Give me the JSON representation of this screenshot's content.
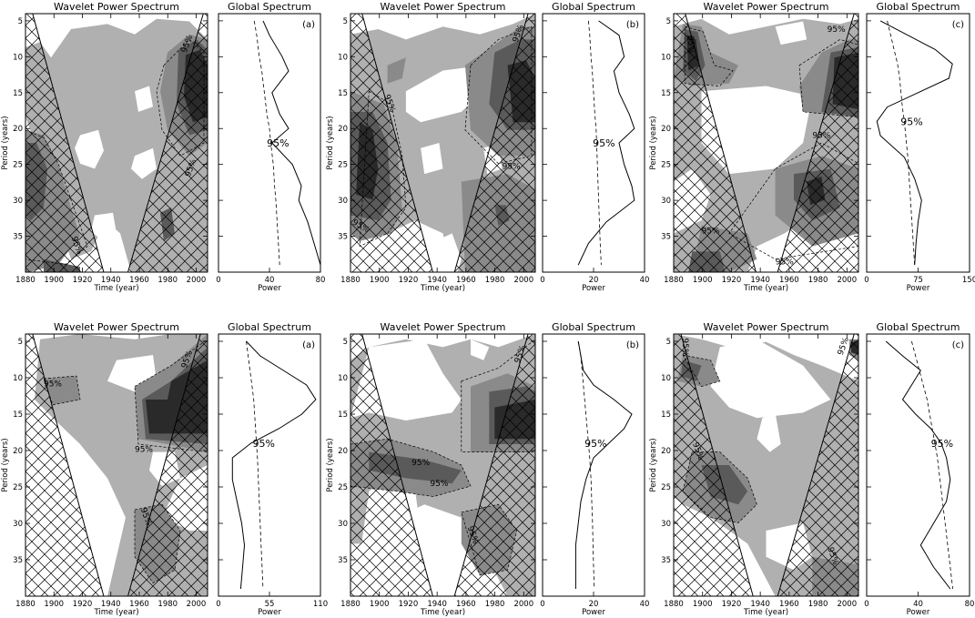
{
  "figure": {
    "wavelet_title": "Wavelet Power Spectrum",
    "global_title": "Global Spectrum",
    "time_label": "Time (year)",
    "period_label": "Period (years)",
    "power_label": "Power",
    "sig_label": "95%"
  },
  "chart_data": [
    {
      "type": "heatmap",
      "panel": "(a)",
      "row": 1,
      "title": "Wavelet Power Spectrum",
      "xlabel": "Time (year)",
      "ylabel": "Period (years)",
      "x_ticks": [
        1880,
        1900,
        1920,
        1940,
        1960,
        1980,
        2000
      ],
      "y_ticks": [
        5,
        10,
        15,
        20,
        25,
        30,
        35
      ],
      "xlim": [
        1880,
        2008
      ],
      "ylim": [
        4,
        40
      ],
      "y_inverted": true,
      "contour_levels": [
        "light",
        "medium",
        "dark",
        "darkest"
      ],
      "significance_label": "95%",
      "cone_of_influence": {
        "left_edge_year": [
          1885,
          1935
        ],
        "right_edge_year": [
          2005,
          1952
        ]
      },
      "global_spectrum": {
        "title": "Global Spectrum",
        "xlabel": "Power",
        "xlim": [
          0,
          80
        ],
        "x_ticks": [
          0,
          40,
          80
        ],
        "period": [
          5,
          7,
          10,
          12,
          15,
          18,
          20,
          22,
          25,
          28,
          30,
          33,
          36,
          39
        ],
        "power": [
          35,
          40,
          50,
          55,
          42,
          48,
          55,
          42,
          58,
          65,
          63,
          70,
          75,
          80
        ],
        "significance_95": [
          28,
          30,
          32,
          34,
          36,
          38,
          40,
          41,
          43,
          44,
          45,
          46,
          47,
          48
        ]
      }
    },
    {
      "type": "heatmap",
      "panel": "(b)",
      "row": 1,
      "title": "Wavelet Power Spectrum",
      "xlabel": "Time (year)",
      "ylabel": "Period (years)",
      "x_ticks": [
        1880,
        1900,
        1920,
        1940,
        1960,
        1980,
        2000
      ],
      "y_ticks": [
        5,
        10,
        15,
        20,
        25,
        30,
        35
      ],
      "xlim": [
        1880,
        2008
      ],
      "ylim": [
        4,
        40
      ],
      "y_inverted": true,
      "contour_levels": [
        "light",
        "medium",
        "dark",
        "darkest"
      ],
      "significance_label": "95%",
      "cone_of_influence": {
        "left_edge_year": [
          1888,
          1937
        ],
        "right_edge_year": [
          2003,
          1952
        ]
      },
      "global_spectrum": {
        "title": "Global Spectrum",
        "xlabel": "Power",
        "xlim": [
          0,
          40
        ],
        "x_ticks": [
          0,
          20,
          40
        ],
        "period": [
          5,
          7,
          10,
          12,
          15,
          18,
          20,
          22,
          25,
          28,
          30,
          33,
          36,
          39
        ],
        "power": [
          22,
          30,
          32,
          28,
          30,
          34,
          36,
          30,
          32,
          35,
          36,
          25,
          18,
          14
        ],
        "significance_95": [
          18,
          18.5,
          19,
          19.5,
          20,
          20.5,
          21,
          21.2,
          21.5,
          21.8,
          22,
          22.3,
          22.6,
          23
        ]
      }
    },
    {
      "type": "heatmap",
      "panel": "(c)",
      "row": 1,
      "title": "Wavelet Power Spectrum",
      "xlabel": "Time (year)",
      "ylabel": "Period (years)",
      "x_ticks": [
        1880,
        1900,
        1920,
        1940,
        1960,
        1980,
        2000
      ],
      "y_ticks": [
        5,
        10,
        15,
        20,
        25,
        30,
        35
      ],
      "xlim": [
        1880,
        2008
      ],
      "ylim": [
        4,
        40
      ],
      "y_inverted": true,
      "contour_levels": [
        "light",
        "medium",
        "dark",
        "darkest"
      ],
      "significance_label": "95%",
      "cone_of_influence": {
        "left_edge_year": [
          1888,
          1937
        ],
        "right_edge_year": [
          2005,
          1952
        ]
      },
      "global_spectrum": {
        "title": "Global Spectrum",
        "xlabel": "Power",
        "xlim": [
          0,
          150
        ],
        "x_ticks": [
          0,
          75,
          150
        ],
        "period": [
          5,
          7,
          9,
          11,
          13,
          15,
          17,
          19,
          21,
          24,
          27,
          30,
          33,
          36,
          39
        ],
        "power": [
          20,
          60,
          100,
          125,
          120,
          75,
          30,
          15,
          20,
          55,
          70,
          80,
          75,
          72,
          70
        ],
        "significance_95": [
          30,
          35,
          40,
          45,
          48,
          50,
          52,
          55,
          57,
          60,
          62,
          64,
          66,
          68,
          70
        ]
      }
    },
    {
      "type": "heatmap",
      "panel": "(a)",
      "row": 2,
      "title": "Wavelet Power Spectrum",
      "xlabel": "Time (year)",
      "ylabel": "Period (years)",
      "x_ticks": [
        1880,
        1900,
        1920,
        1940,
        1960,
        1980,
        2000
      ],
      "y_ticks": [
        5,
        10,
        15,
        20,
        25,
        30,
        35
      ],
      "xlim": [
        1880,
        2008
      ],
      "ylim": [
        4,
        40
      ],
      "y_inverted": true,
      "contour_levels": [
        "light",
        "medium",
        "dark",
        "darkest"
      ],
      "significance_label": "95%",
      "cone_of_influence": {
        "left_edge_year": [
          1885,
          1935
        ],
        "right_edge_year": [
          2003,
          1952
        ]
      },
      "global_spectrum": {
        "title": "Global Spectrum",
        "xlabel": "Power",
        "xlim": [
          0,
          110
        ],
        "x_ticks": [
          0,
          55,
          110
        ],
        "period": [
          5,
          7,
          9,
          11,
          13,
          15,
          17,
          19,
          21,
          24,
          27,
          30,
          33,
          36,
          39
        ],
        "power": [
          30,
          45,
          70,
          95,
          105,
          90,
          65,
          35,
          15,
          15,
          20,
          25,
          28,
          26,
          24
        ],
        "significance_95": [
          30,
          32,
          34,
          36,
          38,
          39,
          40,
          41,
          42,
          43,
          44,
          45,
          46,
          47,
          48
        ]
      }
    },
    {
      "type": "heatmap",
      "panel": "(b)",
      "row": 2,
      "title": "Wavelet Power Spectrum",
      "xlabel": "Time (year)",
      "ylabel": "Period (years)",
      "x_ticks": [
        1880,
        1900,
        1920,
        1940,
        1960,
        1980,
        2000
      ],
      "y_ticks": [
        5,
        10,
        15,
        20,
        25,
        30,
        35
      ],
      "xlim": [
        1880,
        2008
      ],
      "ylim": [
        4,
        40
      ],
      "y_inverted": true,
      "contour_levels": [
        "light",
        "medium",
        "dark",
        "darkest"
      ],
      "significance_label": "95%",
      "cone_of_influence": {
        "left_edge_year": [
          1888,
          1937
        ],
        "right_edge_year": [
          2003,
          1952
        ]
      },
      "global_spectrum": {
        "title": "Global Spectrum",
        "xlabel": "Power",
        "xlim": [
          0,
          40
        ],
        "x_ticks": [
          0,
          20,
          40
        ],
        "period": [
          5,
          7,
          9,
          11,
          13,
          15,
          17,
          19,
          21,
          24,
          27,
          30,
          33,
          36,
          39
        ],
        "power": [
          14,
          15,
          16,
          20,
          28,
          35,
          32,
          26,
          20,
          17,
          15,
          14,
          13,
          13,
          13
        ],
        "significance_95": [
          14,
          15,
          15.5,
          16,
          16.5,
          17,
          17.5,
          18,
          18.5,
          19,
          19.3,
          19.6,
          19.8,
          20,
          20.3
        ]
      }
    },
    {
      "type": "heatmap",
      "panel": "(c)",
      "row": 2,
      "title": "Wavelet Power Spectrum",
      "xlabel": "Time (year)",
      "ylabel": "Period (years)",
      "x_ticks": [
        1880,
        1900,
        1920,
        1940,
        1960,
        1980,
        2000
      ],
      "y_ticks": [
        5,
        10,
        15,
        20,
        25,
        30,
        35
      ],
      "xlim": [
        1880,
        2008
      ],
      "ylim": [
        4,
        40
      ],
      "y_inverted": true,
      "contour_levels": [
        "light",
        "medium",
        "dark",
        "darkest"
      ],
      "significance_label": "95%",
      "cone_of_influence": {
        "left_edge_year": [
          1885,
          1935
        ],
        "right_edge_year": [
          2005,
          1952
        ]
      },
      "global_spectrum": {
        "title": "Global Spectrum",
        "xlabel": "Power",
        "xlim": [
          0,
          80
        ],
        "x_ticks": [
          0,
          40,
          80
        ],
        "period": [
          5,
          7,
          9,
          11,
          13,
          15,
          17,
          19,
          21,
          24,
          27,
          30,
          33,
          36,
          39
        ],
        "power": [
          15,
          28,
          42,
          35,
          28,
          38,
          50,
          58,
          62,
          65,
          62,
          52,
          42,
          52,
          65
        ],
        "significance_95": [
          35,
          38,
          41,
          44,
          47,
          49,
          51,
          53,
          55,
          57,
          59,
          61,
          63,
          65,
          67
        ]
      }
    }
  ]
}
